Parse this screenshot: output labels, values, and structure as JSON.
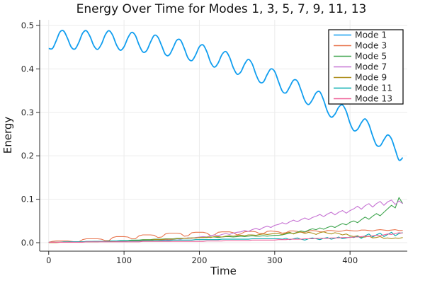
{
  "figure_background": "#ffffff",
  "chart_data": {
    "type": "line",
    "title": "Energy Over Time for Modes 1, 3, 5, 7, 9, 11, 13",
    "xlabel": "Time",
    "ylabel": "Energy",
    "xlim": [
      -12,
      476
    ],
    "ylim": [
      -0.0195,
      0.513
    ],
    "x_ticks": [
      0,
      100,
      200,
      300,
      400
    ],
    "x_tick_labels": [
      "0",
      "100",
      "200",
      "300",
      "400"
    ],
    "y_ticks": [
      0.0,
      0.1,
      0.2,
      0.3,
      0.4,
      0.5
    ],
    "y_tick_labels": [
      "0.0",
      "0.1",
      "0.2",
      "0.3",
      "0.4",
      "0.5"
    ],
    "grid": true,
    "grid_color": "#ebebeb",
    "axis_color": "#2b2b2b",
    "legend_position": "top-right",
    "legend_border_color": "#000000",
    "x": [
      0,
      5,
      10,
      15,
      20,
      25,
      30,
      35,
      40,
      45,
      50,
      55,
      60,
      65,
      70,
      75,
      80,
      85,
      90,
      95,
      100,
      105,
      110,
      115,
      120,
      125,
      130,
      135,
      140,
      145,
      150,
      155,
      160,
      165,
      170,
      175,
      180,
      185,
      190,
      195,
      200,
      205,
      210,
      215,
      220,
      225,
      230,
      235,
      240,
      245,
      250,
      255,
      260,
      265,
      270,
      275,
      280,
      285,
      290,
      295,
      300,
      305,
      310,
      315,
      320,
      325,
      330,
      335,
      340,
      345,
      350,
      355,
      360,
      365,
      370,
      375,
      380,
      385,
      390,
      395,
      400,
      405,
      410,
      415,
      420,
      425,
      430,
      435,
      440,
      445,
      450,
      455,
      460,
      465,
      470
    ],
    "series": [
      {
        "name": "Mode 1",
        "color": "#119EEF",
        "width": 1.8,
        "smooth": true,
        "values": [
          0.447,
          0.447,
          0.465,
          0.485,
          0.487,
          0.47,
          0.45,
          0.446,
          0.461,
          0.482,
          0.488,
          0.474,
          0.453,
          0.445,
          0.457,
          0.478,
          0.488,
          0.477,
          0.455,
          0.443,
          0.451,
          0.471,
          0.484,
          0.477,
          0.455,
          0.439,
          0.442,
          0.461,
          0.477,
          0.473,
          0.453,
          0.433,
          0.432,
          0.448,
          0.466,
          0.466,
          0.447,
          0.425,
          0.419,
          0.432,
          0.451,
          0.455,
          0.439,
          0.415,
          0.404,
          0.414,
          0.433,
          0.44,
          0.427,
          0.403,
          0.388,
          0.393,
          0.411,
          0.422,
          0.412,
          0.388,
          0.37,
          0.37,
          0.387,
          0.4,
          0.394,
          0.371,
          0.349,
          0.345,
          0.359,
          0.374,
          0.372,
          0.351,
          0.327,
          0.318,
          0.329,
          0.345,
          0.347,
          0.328,
          0.302,
          0.289,
          0.296,
          0.312,
          0.317,
          0.302,
          0.275,
          0.258,
          0.261,
          0.276,
          0.285,
          0.272,
          0.246,
          0.225,
          0.223,
          0.237,
          0.248,
          0.239,
          0.214,
          0.19,
          0.196
        ]
      },
      {
        "name": "Mode 3",
        "color": "#E8744D",
        "width": 1.1,
        "smooth": false,
        "values": [
          0.001,
          0.003,
          0.004,
          0.004,
          0.004,
          0.004,
          0.003,
          0.002,
          0.002,
          0.007,
          0.009,
          0.009,
          0.009,
          0.009,
          0.008,
          0.005,
          0.005,
          0.012,
          0.014,
          0.014,
          0.014,
          0.013,
          0.009,
          0.009,
          0.016,
          0.018,
          0.018,
          0.018,
          0.017,
          0.012,
          0.013,
          0.02,
          0.022,
          0.022,
          0.022,
          0.021,
          0.015,
          0.016,
          0.023,
          0.024,
          0.024,
          0.024,
          0.022,
          0.016,
          0.018,
          0.024,
          0.025,
          0.025,
          0.025,
          0.023,
          0.018,
          0.02,
          0.025,
          0.026,
          0.026,
          0.025,
          0.021,
          0.021,
          0.026,
          0.027,
          0.026,
          0.025,
          0.022,
          0.023,
          0.027,
          0.027,
          0.026,
          0.024,
          0.024,
          0.027,
          0.028,
          0.027,
          0.025,
          0.025,
          0.028,
          0.028,
          0.027,
          0.026,
          0.027,
          0.029,
          0.028,
          0.027,
          0.027,
          0.029,
          0.029,
          0.028,
          0.027,
          0.029,
          0.03,
          0.029,
          0.028,
          0.029,
          0.03,
          0.028,
          0.028
        ]
      },
      {
        "name": "Mode 5",
        "color": "#3DA44D",
        "width": 1.1,
        "smooth": false,
        "values": [
          0.0,
          0.0,
          0.001,
          0.001,
          0.001,
          0.001,
          0.001,
          0.002,
          0.002,
          0.002,
          0.002,
          0.002,
          0.003,
          0.003,
          0.003,
          0.003,
          0.004,
          0.004,
          0.004,
          0.005,
          0.005,
          0.005,
          0.006,
          0.006,
          0.006,
          0.007,
          0.007,
          0.007,
          0.008,
          0.008,
          0.008,
          0.009,
          0.009,
          0.009,
          0.01,
          0.01,
          0.01,
          0.011,
          0.011,
          0.011,
          0.012,
          0.012,
          0.012,
          0.013,
          0.013,
          0.012,
          0.013,
          0.014,
          0.014,
          0.013,
          0.014,
          0.015,
          0.014,
          0.015,
          0.016,
          0.015,
          0.015,
          0.016,
          0.015,
          0.016,
          0.017,
          0.017,
          0.018,
          0.02,
          0.022,
          0.021,
          0.024,
          0.027,
          0.025,
          0.029,
          0.032,
          0.03,
          0.034,
          0.031,
          0.035,
          0.038,
          0.035,
          0.04,
          0.044,
          0.041,
          0.047,
          0.05,
          0.046,
          0.053,
          0.059,
          0.054,
          0.061,
          0.067,
          0.062,
          0.07,
          0.078,
          0.086,
          0.08,
          0.104,
          0.09
        ]
      },
      {
        "name": "Mode 7",
        "color": "#C672D3",
        "width": 1.1,
        "smooth": false,
        "values": [
          0.001,
          0.001,
          0.001,
          0.001,
          0.001,
          0.001,
          0.002,
          0.002,
          0.002,
          0.002,
          0.002,
          0.002,
          0.002,
          0.002,
          0.003,
          0.003,
          0.003,
          0.003,
          0.003,
          0.003,
          0.003,
          0.004,
          0.004,
          0.004,
          0.004,
          0.004,
          0.005,
          0.005,
          0.005,
          0.005,
          0.006,
          0.007,
          0.006,
          0.008,
          0.009,
          0.008,
          0.01,
          0.011,
          0.01,
          0.012,
          0.013,
          0.014,
          0.013,
          0.016,
          0.018,
          0.016,
          0.019,
          0.021,
          0.019,
          0.022,
          0.024,
          0.025,
          0.028,
          0.026,
          0.03,
          0.033,
          0.03,
          0.035,
          0.038,
          0.035,
          0.04,
          0.042,
          0.046,
          0.043,
          0.048,
          0.052,
          0.048,
          0.053,
          0.057,
          0.053,
          0.058,
          0.061,
          0.065,
          0.06,
          0.066,
          0.07,
          0.064,
          0.07,
          0.074,
          0.068,
          0.074,
          0.078,
          0.084,
          0.077,
          0.085,
          0.09,
          0.082,
          0.09,
          0.095,
          0.086,
          0.094,
          0.098,
          0.088,
          0.096,
          0.09
        ]
      },
      {
        "name": "Mode 9",
        "color": "#AD8E1A",
        "width": 1.1,
        "smooth": false,
        "values": [
          0.0,
          0.0,
          0.0,
          0.001,
          0.001,
          0.001,
          0.001,
          0.001,
          0.001,
          0.002,
          0.002,
          0.002,
          0.002,
          0.002,
          0.003,
          0.003,
          0.003,
          0.003,
          0.004,
          0.004,
          0.004,
          0.004,
          0.005,
          0.005,
          0.005,
          0.006,
          0.006,
          0.006,
          0.007,
          0.007,
          0.007,
          0.008,
          0.008,
          0.008,
          0.009,
          0.009,
          0.01,
          0.01,
          0.011,
          0.011,
          0.012,
          0.012,
          0.013,
          0.012,
          0.014,
          0.014,
          0.013,
          0.015,
          0.016,
          0.015,
          0.016,
          0.017,
          0.016,
          0.018,
          0.018,
          0.017,
          0.019,
          0.02,
          0.019,
          0.02,
          0.021,
          0.021,
          0.019,
          0.022,
          0.024,
          0.02,
          0.023,
          0.025,
          0.021,
          0.024,
          0.022,
          0.019,
          0.023,
          0.025,
          0.022,
          0.02,
          0.023,
          0.021,
          0.018,
          0.02,
          0.016,
          0.014,
          0.016,
          0.012,
          0.013,
          0.015,
          0.011,
          0.012,
          0.014,
          0.01,
          0.011,
          0.009,
          0.011,
          0.01,
          0.012
        ]
      },
      {
        "name": "Mode 11",
        "color": "#00AAAE",
        "width": 1.1,
        "smooth": false,
        "values": [
          0.001,
          0.001,
          0.001,
          0.001,
          0.002,
          0.002,
          0.002,
          0.002,
          0.002,
          0.002,
          0.003,
          0.003,
          0.003,
          0.003,
          0.003,
          0.003,
          0.003,
          0.004,
          0.004,
          0.004,
          0.004,
          0.004,
          0.004,
          0.004,
          0.004,
          0.005,
          0.005,
          0.005,
          0.005,
          0.005,
          0.005,
          0.005,
          0.005,
          0.006,
          0.006,
          0.006,
          0.006,
          0.006,
          0.006,
          0.007,
          0.007,
          0.007,
          0.007,
          0.007,
          0.007,
          0.007,
          0.008,
          0.008,
          0.008,
          0.008,
          0.008,
          0.008,
          0.008,
          0.008,
          0.009,
          0.009,
          0.009,
          0.009,
          0.009,
          0.009,
          0.009,
          0.009,
          0.008,
          0.01,
          0.007,
          0.009,
          0.011,
          0.008,
          0.006,
          0.009,
          0.011,
          0.009,
          0.007,
          0.01,
          0.012,
          0.008,
          0.01,
          0.013,
          0.009,
          0.011,
          0.013,
          0.012,
          0.015,
          0.01,
          0.016,
          0.02,
          0.013,
          0.018,
          0.022,
          0.014,
          0.019,
          0.024,
          0.016,
          0.021,
          0.023
        ]
      },
      {
        "name": "Mode 13",
        "color": "#EF6098",
        "width": 1.1,
        "smooth": false,
        "values": [
          0.001,
          0.001,
          0.001,
          0.001,
          0.001,
          0.001,
          0.001,
          0.001,
          0.001,
          0.001,
          0.002,
          0.002,
          0.002,
          0.002,
          0.002,
          0.002,
          0.002,
          0.002,
          0.002,
          0.002,
          0.002,
          0.002,
          0.002,
          0.002,
          0.002,
          0.003,
          0.003,
          0.003,
          0.003,
          0.003,
          0.003,
          0.003,
          0.003,
          0.003,
          0.003,
          0.003,
          0.003,
          0.003,
          0.003,
          0.003,
          0.003,
          0.003,
          0.004,
          0.004,
          0.004,
          0.004,
          0.004,
          0.005,
          0.005,
          0.005,
          0.005,
          0.005,
          0.005,
          0.005,
          0.006,
          0.006,
          0.006,
          0.006,
          0.006,
          0.006,
          0.006,
          0.007,
          0.007,
          0.007,
          0.008,
          0.008,
          0.008,
          0.008,
          0.009,
          0.009,
          0.009,
          0.01,
          0.01,
          0.01,
          0.01,
          0.011,
          0.011,
          0.011,
          0.012,
          0.012,
          0.012,
          0.013,
          0.013,
          0.014,
          0.015,
          0.014,
          0.016,
          0.017,
          0.016,
          0.018,
          0.02,
          0.019,
          0.021,
          0.023,
          0.022
        ]
      }
    ]
  }
}
